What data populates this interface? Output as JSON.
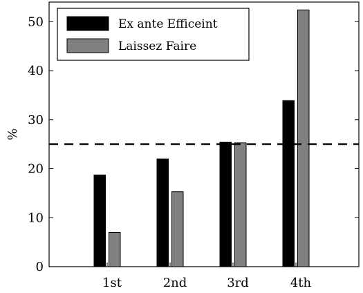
{
  "chart_data": {
    "type": "bar",
    "categories": [
      "1st",
      "2nd",
      "3rd",
      "4th"
    ],
    "series": [
      {
        "name": "Ex ante Efficeint",
        "color": "#000000",
        "values": [
          18.7,
          22.0,
          25.4,
          33.9
        ]
      },
      {
        "name": "Laissez Faire",
        "color": "#808080",
        "values": [
          7.0,
          15.3,
          25.3,
          52.4
        ]
      }
    ],
    "ylabel": "%",
    "ylim": [
      0,
      54
    ],
    "yticks": [
      0,
      10,
      20,
      30,
      40,
      50
    ],
    "reference_line": {
      "y": 25,
      "style": "dashed",
      "color": "#000000"
    },
    "legend_position": "top-left",
    "grid": false
  }
}
